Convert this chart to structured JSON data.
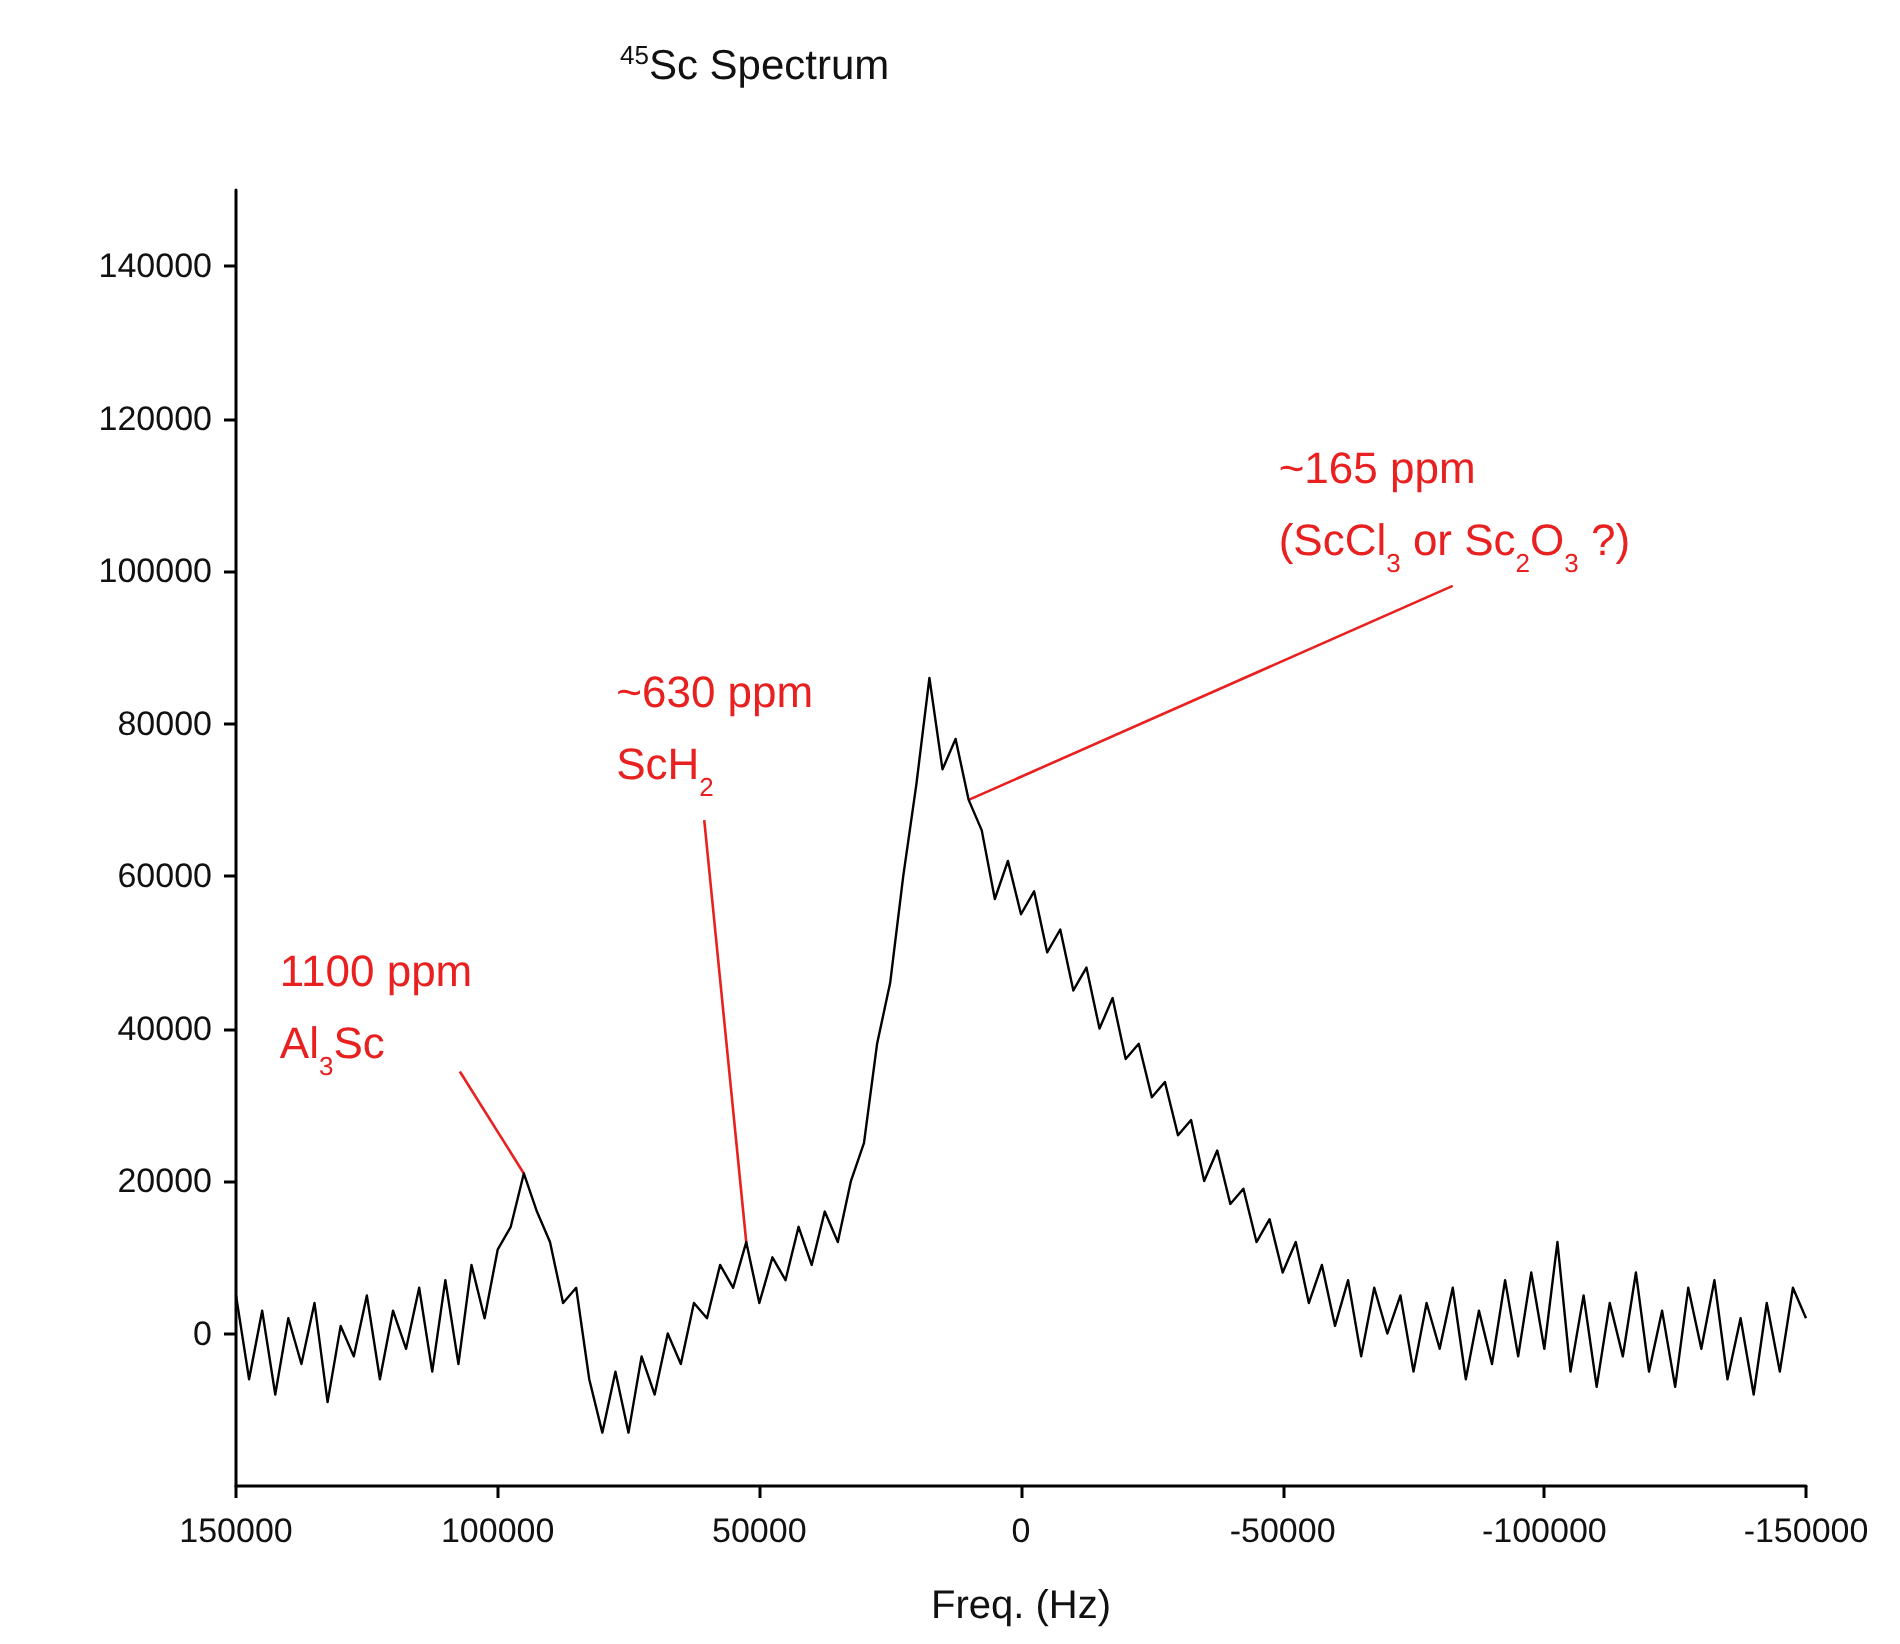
{
  "chart_data": {
    "type": "line",
    "title": "$^{45}$Sc Spectrum",
    "xlabel": "Freq. (Hz)",
    "x": [
      150000,
      147500,
      145000,
      142500,
      140000,
      137500,
      135000,
      132500,
      130000,
      127500,
      125000,
      122500,
      120000,
      117500,
      115000,
      112500,
      110000,
      107500,
      105000,
      102500,
      100000,
      97500,
      95000,
      92500,
      90000,
      87500,
      85000,
      82500,
      80000,
      77500,
      75000,
      72500,
      70000,
      67500,
      65000,
      62500,
      60000,
      57500,
      55000,
      52500,
      50000,
      47500,
      45000,
      42500,
      40000,
      37500,
      35000,
      32500,
      30000,
      27500,
      25000,
      22500,
      20000,
      17500,
      15000,
      12500,
      10000,
      7500,
      5000,
      2500,
      0,
      -2500,
      -5000,
      -7500,
      -10000,
      -12500,
      -15000,
      -17500,
      -20000,
      -22500,
      -25000,
      -27500,
      -30000,
      -32500,
      -35000,
      -37500,
      -40000,
      -42500,
      -45000,
      -47500,
      -50000,
      -52500,
      -55000,
      -57500,
      -60000,
      -62500,
      -65000,
      -67500,
      -70000,
      -72500,
      -75000,
      -77500,
      -80000,
      -82500,
      -85000,
      -87500,
      -90000,
      -92500,
      -95000,
      -97500,
      -100000,
      -102500,
      -105000,
      -107500,
      -110000,
      -112500,
      -115000,
      -117500,
      -120000,
      -122500,
      -125000,
      -127500,
      -130000,
      -132500,
      -135000,
      -137500,
      -140000,
      -142500,
      -145000,
      -147500,
      -150000
    ],
    "series": [
      {
        "color": "#000000",
        "values": [
          5000,
          -6000,
          3000,
          -8000,
          2000,
          -4000,
          4000,
          -9000,
          1000,
          -3000,
          5000,
          -6000,
          3000,
          -2000,
          6000,
          -5000,
          7000,
          -4000,
          9000,
          2000,
          11000,
          14000,
          21000,
          16000,
          12000,
          4000,
          6000,
          -6000,
          -13000,
          -5000,
          -13000,
          -3000,
          -8000,
          0,
          -4000,
          4000,
          2000,
          9000,
          6000,
          12000,
          4000,
          10000,
          7000,
          14000,
          9000,
          16000,
          12000,
          20000,
          25000,
          38000,
          46000,
          60000,
          72000,
          86000,
          74000,
          78000,
          70000,
          66000,
          57000,
          62000,
          55000,
          58000,
          50000,
          53000,
          45000,
          48000,
          40000,
          44000,
          36000,
          38000,
          31000,
          33000,
          26000,
          28000,
          20000,
          24000,
          17000,
          19000,
          12000,
          15000,
          8000,
          12000,
          4000,
          9000,
          1000,
          7000,
          -3000,
          6000,
          0,
          5000,
          -5000,
          4000,
          -2000,
          6000,
          -6000,
          3000,
          -4000,
          7000,
          -3000,
          8000,
          -2000,
          12000,
          -5000,
          5000,
          -7000,
          4000,
          -3000,
          8000,
          -5000,
          3000,
          -7000,
          6000,
          -2000,
          7000,
          -6000,
          2000,
          -8000,
          4000,
          -5000,
          6000,
          2000
        ]
      }
    ],
    "xlim": [
      150000,
      -150000
    ],
    "xticks": [
      150000,
      100000,
      50000,
      0,
      -50000,
      -100000,
      -150000
    ],
    "ylim": [
      -20000,
      150000
    ],
    "yticks": [
      0,
      20000,
      40000,
      60000,
      80000,
      100000,
      120000,
      140000
    ],
    "annotations": [
      {
        "text": "1100 ppm\nAl$_{3}$Sc",
        "x": 95000,
        "y": 21000
      },
      {
        "text": "~630 ppm\nScH$_{2}$",
        "x": 52500,
        "y": 12000
      },
      {
        "text": "~165 ppm\n(ScCl$_{3}$ or Sc$_{2}$O$_{3}$ ?)",
        "x": 10000,
        "y": 70000
      }
    ],
    "grid": false,
    "marker": "none",
    "line_style": "solid"
  }
}
